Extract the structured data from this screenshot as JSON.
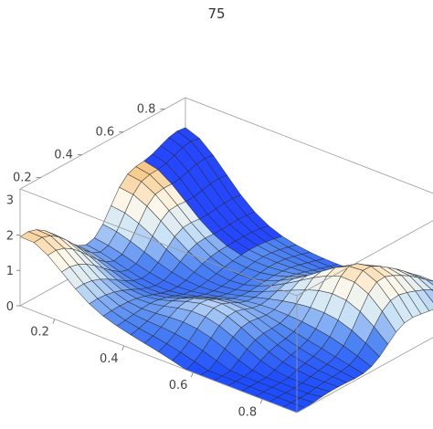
{
  "chart_data": {
    "type": "surface3d",
    "title": "75",
    "x_ticks": [
      "0.2",
      "0.4",
      "0.6",
      "0.8"
    ],
    "y_ticks": [
      "0.2",
      "0.4",
      "0.6",
      "0.8"
    ],
    "z_ticks": [
      "0",
      "1",
      "2"
    ],
    "z_tick_partial": "3",
    "xlim": [
      0.1,
      0.9
    ],
    "ylim": [
      0.1,
      0.9
    ],
    "zlim": [
      0,
      3.3
    ],
    "colormap": [
      "#1e4dff",
      "#4f86f2",
      "#cfe6f6",
      "#fff8ea",
      "#f7c98a",
      "#e0a050"
    ],
    "cutoff_color": "#2447ff",
    "grid": true
  }
}
